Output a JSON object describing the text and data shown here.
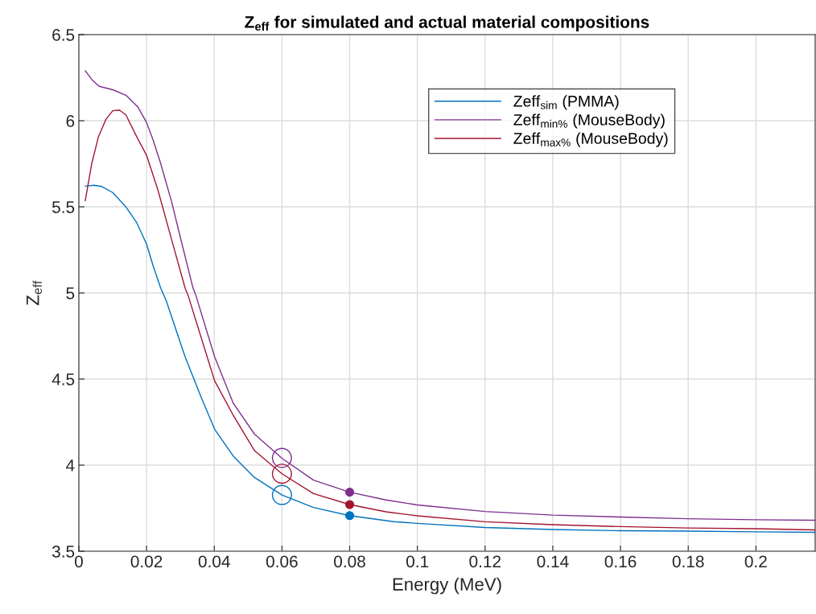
{
  "chart_data": {
    "type": "line",
    "title": "Z$_{eff}$ for simulated and actual material compositions",
    "xlabel": "Energy (MeV)",
    "ylabel": "Z$_{eff}$",
    "xlim": [
      0,
      0.2175
    ],
    "ylim": [
      3.5,
      6.5
    ],
    "xticks": [
      0,
      0.02,
      0.04,
      0.06,
      0.08,
      0.1,
      0.12,
      0.14,
      0.16,
      0.18,
      0.2
    ],
    "yticks": [
      3.5,
      4,
      4.5,
      5,
      5.5,
      6,
      6.5
    ],
    "grid": true,
    "legend": "top right",
    "marker": "none",
    "line_style": "solid",
    "series": [
      {
        "name": "Zeff$_{sim}$ (PMMA)",
        "color": "#0072bd",
        "x": [
          0.0019,
          0.0045,
          0.0068,
          0.01,
          0.0139,
          0.0171,
          0.02,
          0.0219,
          0.0242,
          0.0258,
          0.0314,
          0.0361,
          0.0401,
          0.0456,
          0.0519,
          0.06,
          0.0693,
          0.08,
          0.093,
          0.1,
          0.12,
          0.14,
          0.16,
          0.18,
          0.2,
          0.2175
        ],
        "values": [
          5.62,
          5.625,
          5.618,
          5.583,
          5.5,
          5.408,
          5.284,
          5.16,
          5.027,
          4.956,
          4.629,
          4.396,
          4.209,
          4.053,
          3.928,
          3.827,
          3.754,
          3.707,
          3.672,
          3.662,
          3.638,
          3.626,
          3.619,
          3.617,
          3.613,
          3.61
        ]
      },
      {
        "name": "Zeff$_{min%}$ (MouseBody)",
        "color": "#7e2f8e",
        "x": [
          0.0019,
          0.0038,
          0.006,
          0.01,
          0.0139,
          0.0175,
          0.02,
          0.0219,
          0.0242,
          0.0274,
          0.0304,
          0.0337,
          0.0345,
          0.0401,
          0.0456,
          0.0519,
          0.06,
          0.0693,
          0.08,
          0.0907,
          0.1,
          0.12,
          0.14,
          0.16,
          0.18,
          0.2,
          0.2175
        ],
        "values": [
          6.29,
          6.24,
          6.2,
          6.18,
          6.148,
          6.078,
          5.99,
          5.89,
          5.75,
          5.53,
          5.29,
          5.03,
          4.99,
          4.63,
          4.36,
          4.18,
          4.04,
          3.913,
          3.843,
          3.798,
          3.769,
          3.731,
          3.71,
          3.699,
          3.689,
          3.683,
          3.68
        ]
      },
      {
        "name": "Zeff$_{max%}$ (MouseBody)",
        "color": "#a2142f",
        "x": [
          0.0019,
          0.0038,
          0.0058,
          0.008,
          0.01,
          0.012,
          0.0139,
          0.0171,
          0.02,
          0.0234,
          0.0274,
          0.0314,
          0.0322,
          0.0401,
          0.0456,
          0.0519,
          0.06,
          0.0693,
          0.08,
          0.0907,
          0.1,
          0.12,
          0.14,
          0.16,
          0.18,
          0.2,
          0.2175
        ],
        "values": [
          5.536,
          5.75,
          5.907,
          6.008,
          6.058,
          6.062,
          6.034,
          5.907,
          5.8,
          5.595,
          5.31,
          5.027,
          4.99,
          4.49,
          4.29,
          4.084,
          3.95,
          3.835,
          3.771,
          3.729,
          3.706,
          3.671,
          3.654,
          3.643,
          3.635,
          3.631,
          3.624
        ]
      },
      {
        "type": "bubble",
        "marker": "circle",
        "color": "#0072bd",
        "x": [
          0.06
        ],
        "values": [
          3.827
        ],
        "sizes": [
          1
        ]
      },
      {
        "type": "bubble",
        "marker": "circle",
        "color": "#7e2f8e",
        "x": [
          0.06
        ],
        "values": [
          4.042
        ],
        "sizes": [
          1
        ]
      },
      {
        "type": "bubble",
        "marker": "circle",
        "color": "#a2142f",
        "x": [
          0.06
        ],
        "values": [
          3.95
        ],
        "sizes": [
          1
        ]
      },
      {
        "type": "scatter",
        "marker": "circle",
        "color": "#0072bd",
        "x": [
          0.08
        ],
        "values": [
          3.707
        ]
      },
      {
        "type": "scatter",
        "marker": "circle",
        "color": "#7e2f8e",
        "x": [
          0.08
        ],
        "values": [
          3.843
        ]
      },
      {
        "type": "scatter",
        "marker": "circle",
        "color": "#a2142f",
        "x": [
          0.08
        ],
        "values": [
          3.771
        ]
      }
    ]
  }
}
